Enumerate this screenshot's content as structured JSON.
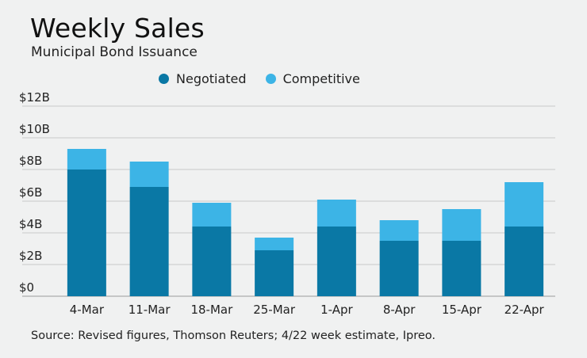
{
  "header": {
    "title": "Weekly Sales",
    "subtitle": "Municipal Bond Issuance"
  },
  "legend": {
    "items": [
      {
        "label": "Negotiated",
        "color": "#0a78a5"
      },
      {
        "label": "Competitive",
        "color": "#3cb4e6"
      }
    ]
  },
  "footer": {
    "source": "Source: Revised figures, Thomson Reuters; 4/22 week estimate, Ipreo."
  },
  "chart_data": {
    "type": "bar",
    "stacked": true,
    "title": "Weekly Sales",
    "subtitle": "Municipal Bond Issuance",
    "xlabel": "",
    "ylabel": "",
    "ylim": [
      0,
      12
    ],
    "yticks": [
      0,
      2,
      4,
      6,
      8,
      10,
      12
    ],
    "ytick_labels": [
      "$0",
      "$2B",
      "$4B",
      "$6B",
      "$8B",
      "$10B",
      "$12B"
    ],
    "grid": true,
    "legend_position": "top-center",
    "categories": [
      "4-Mar",
      "11-Mar",
      "18-Mar",
      "25-Mar",
      "1-Apr",
      "8-Apr",
      "15-Apr",
      "22-Apr"
    ],
    "series": [
      {
        "name": "Negotiated",
        "color": "#0a78a5",
        "values": [
          8.0,
          6.9,
          4.4,
          2.9,
          4.4,
          3.5,
          3.5,
          4.4
        ]
      },
      {
        "name": "Competitive",
        "color": "#3cb4e6",
        "values": [
          1.3,
          1.6,
          1.5,
          0.8,
          1.7,
          1.3,
          2.0,
          2.8
        ]
      }
    ]
  }
}
